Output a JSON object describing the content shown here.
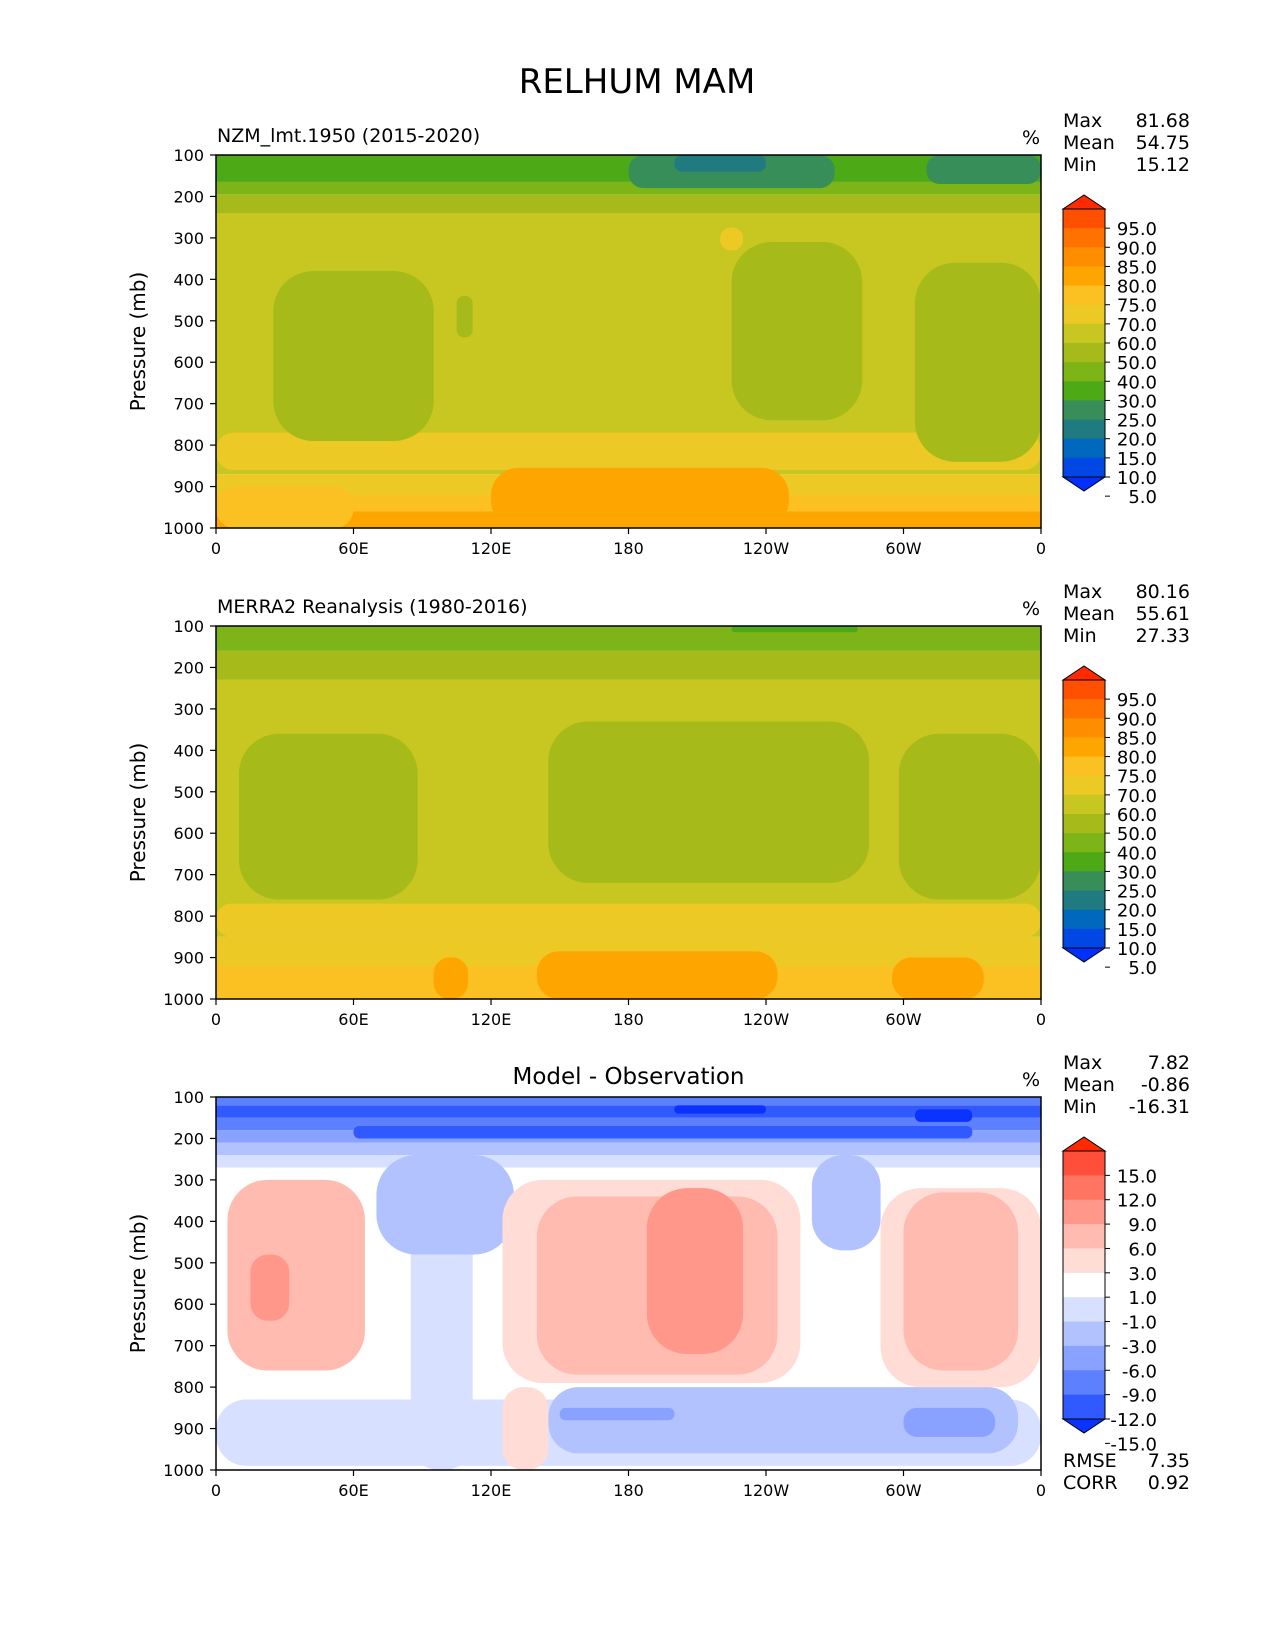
{
  "figure_title": "RELHUM MAM",
  "unit_symbol": "%",
  "chart_data": [
    {
      "type": "contour",
      "title": "NZM_lmt.1950 (2015-2020)",
      "ylabel": "Pressure (mb)",
      "y_ticks": [
        "100",
        "200",
        "300",
        "400",
        "500",
        "600",
        "700",
        "800",
        "900",
        "1000"
      ],
      "ylim": [
        100,
        1000
      ],
      "x_ticks": [
        "0",
        "60E",
        "120E",
        "180",
        "120W",
        "60W",
        "0"
      ],
      "stats": [
        {
          "label": "Max",
          "value": "81.68"
        },
        {
          "label": "Mean",
          "value": "54.75"
        },
        {
          "label": "Min",
          "value": "15.12"
        }
      ],
      "colorbar": {
        "labels": [
          "95.0",
          "90.0",
          "85.0",
          "80.0",
          "75.0",
          "70.0",
          "60.0",
          "50.0",
          "40.0",
          "30.0",
          "25.0",
          "20.0",
          "15.0",
          "10.0",
          "5.0"
        ],
        "colors": [
          "#ff2a00",
          "#ff4f00",
          "#ff7200",
          "#ff8d00",
          "#ffa500",
          "#fbc022",
          "#ecc925",
          "#c8c621",
          "#a6bb19",
          "#7db519",
          "#4ea916",
          "#378e59",
          "#1f7b80",
          "#0068bd",
          "#0047e3",
          "#0030ff"
        ]
      },
      "bands": [
        {
          "name": "band-60-70",
          "p0": 1000,
          "p1": 870,
          "color": "#ecc925"
        },
        {
          "name": "band-70-75",
          "p0": 1000,
          "p1": 920,
          "color": "#fbc022"
        },
        {
          "name": "band-75-80",
          "p0": 1000,
          "p1": 960,
          "color": "#ffa500"
        },
        {
          "name": "band-50-60",
          "p0": 870,
          "p1": 240,
          "color": "#c8c621"
        },
        {
          "name": "band-40-50",
          "p0": 240,
          "p1": 195,
          "color": "#a6bb19"
        },
        {
          "name": "band-30-40",
          "p0": 195,
          "p1": 165,
          "color": "#7db519"
        },
        {
          "name": "band-25-30",
          "p0": 165,
          "p1": 100,
          "color": "#4ea916"
        }
      ],
      "blobs": [
        {
          "name": "moist-band-800",
          "lon0": 0,
          "lon1": 360,
          "p0": 860,
          "p1": 770,
          "color": "#ecc925"
        },
        {
          "name": "moist-equator-west",
          "lon0": 120,
          "lon1": 250,
          "p0": 1000,
          "p1": 855,
          "color": "#ffa500"
        },
        {
          "name": "moist-east",
          "lon0": 0,
          "lon1": 60,
          "p0": 1000,
          "p1": 900,
          "color": "#fbc022"
        },
        {
          "name": "dry-midlat-1",
          "lon0": 25,
          "lon1": 95,
          "p0": 790,
          "p1": 380,
          "color": "#a6bb19"
        },
        {
          "name": "dry-small",
          "lon0": 105,
          "lon1": 112,
          "p0": 540,
          "p1": 440,
          "color": "#a6bb19"
        },
        {
          "name": "dry-midlat-2",
          "lon0": 225,
          "lon1": 282,
          "p0": 740,
          "p1": 310,
          "color": "#a6bb19"
        },
        {
          "name": "dry-midlat-3",
          "lon0": 305,
          "lon1": 360,
          "p0": 840,
          "p1": 360,
          "color": "#a6bb19"
        },
        {
          "name": "moist-patch-300",
          "lon0": 220,
          "lon1": 230,
          "p0": 330,
          "p1": 275,
          "color": "#ecc925"
        },
        {
          "name": "dry-strat-1",
          "lon0": 180,
          "lon1": 270,
          "p0": 180,
          "p1": 100,
          "color": "#378e59"
        },
        {
          "name": "dry-strat-2",
          "lon0": 200,
          "lon1": 240,
          "p0": 140,
          "p1": 100,
          "color": "#1f7b80"
        },
        {
          "name": "dry-strat-3",
          "lon0": 310,
          "lon1": 360,
          "p0": 170,
          "p1": 100,
          "color": "#378e59"
        }
      ]
    },
    {
      "type": "contour",
      "title": "MERRA2 Reanalysis (1980-2016)",
      "ylabel": "Pressure (mb)",
      "y_ticks": [
        "100",
        "200",
        "300",
        "400",
        "500",
        "600",
        "700",
        "800",
        "900",
        "1000"
      ],
      "ylim": [
        100,
        1000
      ],
      "x_ticks": [
        "0",
        "60E",
        "120E",
        "180",
        "120W",
        "60W",
        "0"
      ],
      "stats": [
        {
          "label": "Max",
          "value": "80.16"
        },
        {
          "label": "Mean",
          "value": "55.61"
        },
        {
          "label": "Min",
          "value": "27.33"
        }
      ],
      "colorbar": {
        "labels": [
          "95.0",
          "90.0",
          "85.0",
          "80.0",
          "75.0",
          "70.0",
          "60.0",
          "50.0",
          "40.0",
          "30.0",
          "25.0",
          "20.0",
          "15.0",
          "10.0",
          "5.0"
        ],
        "colors": [
          "#ff2a00",
          "#ff4f00",
          "#ff7200",
          "#ff8d00",
          "#ffa500",
          "#fbc022",
          "#ecc925",
          "#c8c621",
          "#a6bb19",
          "#7db519",
          "#4ea916",
          "#378e59",
          "#1f7b80",
          "#0068bd",
          "#0047e3",
          "#0030ff"
        ]
      },
      "bands": [
        {
          "name": "band-60-70",
          "p0": 1000,
          "p1": 850,
          "color": "#ecc925"
        },
        {
          "name": "band-70-75",
          "p0": 1000,
          "p1": 920,
          "color": "#fbc022"
        },
        {
          "name": "band-50-60",
          "p0": 850,
          "p1": 230,
          "color": "#c8c621"
        },
        {
          "name": "band-40-50",
          "p0": 230,
          "p1": 160,
          "color": "#a6bb19"
        },
        {
          "name": "band-30-40",
          "p0": 160,
          "p1": 100,
          "color": "#7db519"
        }
      ],
      "blobs": [
        {
          "name": "moist-band-780",
          "lon0": 0,
          "lon1": 360,
          "p0": 850,
          "p1": 770,
          "color": "#ecc925"
        },
        {
          "name": "moist-equator-1",
          "lon0": 140,
          "lon1": 245,
          "p0": 1000,
          "p1": 885,
          "color": "#ffa500"
        },
        {
          "name": "moist-equator-2",
          "lon0": 95,
          "lon1": 110,
          "p0": 1000,
          "p1": 900,
          "color": "#ffa500"
        },
        {
          "name": "moist-equator-3",
          "lon0": 295,
          "lon1": 335,
          "p0": 1000,
          "p1": 900,
          "color": "#ffa500"
        },
        {
          "name": "dry-midlat-1",
          "lon0": 10,
          "lon1": 88,
          "p0": 760,
          "p1": 360,
          "color": "#a6bb19"
        },
        {
          "name": "dry-midlat-2",
          "lon0": 145,
          "lon1": 285,
          "p0": 720,
          "p1": 330,
          "color": "#a6bb19"
        },
        {
          "name": "dry-midlat-3",
          "lon0": 298,
          "lon1": 360,
          "p0": 760,
          "p1": 360,
          "color": "#a6bb19"
        },
        {
          "name": "dry-strat-1",
          "lon0": 225,
          "lon1": 280,
          "p0": 115,
          "p1": 100,
          "color": "#4ea916"
        }
      ]
    },
    {
      "type": "contour",
      "title": "Model - Observation",
      "ylabel": "Pressure (mb)",
      "y_ticks": [
        "100",
        "200",
        "300",
        "400",
        "500",
        "600",
        "700",
        "800",
        "900",
        "1000"
      ],
      "ylim": [
        100,
        1000
      ],
      "x_ticks": [
        "0",
        "60E",
        "120E",
        "180",
        "120W",
        "60W",
        "0"
      ],
      "stats": [
        {
          "label": "Max",
          "value": "7.82"
        },
        {
          "label": "Mean",
          "value": "-0.86"
        },
        {
          "label": "Min",
          "value": "-16.31"
        }
      ],
      "metrics": [
        {
          "label": "RMSE",
          "value": "7.35"
        },
        {
          "label": "CORR",
          "value": "0.92"
        }
      ],
      "colorbar": {
        "labels": [
          "15.0",
          "12.0",
          "9.0",
          "6.0",
          "3.0",
          "1.0",
          "-1.0",
          "-3.0",
          "-6.0",
          "-9.0",
          "-12.0",
          "-15.0"
        ],
        "colors": [
          "#ff2a00",
          "#ff4f3a",
          "#ff7562",
          "#ff978a",
          "#ffbbb0",
          "#ffdcd6",
          "#ffffff",
          "#d8e0ff",
          "#b2c2ff",
          "#8aa2ff",
          "#5c80ff",
          "#3059ff",
          "#0a33ff"
        ]
      },
      "bands": [
        {
          "name": "band-neutral",
          "p0": 1000,
          "p1": 270,
          "color": "#ffffff"
        },
        {
          "name": "band-neg-1",
          "p0": 270,
          "p1": 240,
          "color": "#d8e0ff"
        },
        {
          "name": "band-neg-3",
          "p0": 240,
          "p1": 210,
          "color": "#b2c2ff"
        },
        {
          "name": "band-neg-6",
          "p0": 210,
          "p1": 180,
          "color": "#8aa2ff"
        },
        {
          "name": "band-neg-9",
          "p0": 180,
          "p1": 150,
          "color": "#5c80ff"
        },
        {
          "name": "band-neg-12",
          "p0": 150,
          "p1": 120,
          "color": "#3059ff"
        },
        {
          "name": "band-neg-15",
          "p0": 120,
          "p1": 100,
          "color": "#5c80ff"
        }
      ],
      "blobs": [
        {
          "name": "neg-lower-belt",
          "lon0": 0,
          "lon1": 360,
          "p0": 990,
          "p1": 830,
          "color": "#d8e0ff"
        },
        {
          "name": "neg-lower-belt-2",
          "lon0": 145,
          "lon1": 350,
          "p0": 960,
          "p1": 800,
          "color": "#b2c2ff"
        },
        {
          "name": "neg-trop-column",
          "lon0": 85,
          "lon1": 112,
          "p0": 1000,
          "p1": 260,
          "color": "#d8e0ff"
        },
        {
          "name": "neg-trop-upper",
          "lon0": 70,
          "lon1": 130,
          "p0": 480,
          "p1": 240,
          "color": "#b2c2ff"
        },
        {
          "name": "neg-column-2",
          "lon0": 260,
          "lon1": 290,
          "p0": 470,
          "p1": 240,
          "color": "#b2c2ff"
        },
        {
          "name": "pos-midlat-1",
          "lon0": 5,
          "lon1": 65,
          "p0": 760,
          "p1": 300,
          "color": "#ffbbb0"
        },
        {
          "name": "pos-midlat-1-core",
          "lon0": 15,
          "lon1": 32,
          "p0": 640,
          "p1": 480,
          "color": "#ff978a"
        },
        {
          "name": "pos-midlat-2",
          "lon0": 125,
          "lon1": 255,
          "p0": 790,
          "p1": 300,
          "color": "#ffdcd6"
        },
        {
          "name": "pos-midlat-2-b",
          "lon0": 140,
          "lon1": 245,
          "p0": 770,
          "p1": 340,
          "color": "#ffbbb0"
        },
        {
          "name": "pos-midlat-2-core",
          "lon0": 188,
          "lon1": 230,
          "p0": 720,
          "p1": 320,
          "color": "#ff978a"
        },
        {
          "name": "pos-midlat-3",
          "lon0": 290,
          "lon1": 360,
          "p0": 800,
          "p1": 320,
          "color": "#ffdcd6"
        },
        {
          "name": "pos-midlat-3-b",
          "lon0": 300,
          "lon1": 350,
          "p0": 760,
          "p1": 330,
          "color": "#ffbbb0"
        },
        {
          "name": "pos-small-1",
          "lon0": 125,
          "lon1": 145,
          "p0": 1000,
          "p1": 800,
          "color": "#ffdcd6"
        },
        {
          "name": "neg-core-1",
          "lon0": 150,
          "lon1": 200,
          "p0": 880,
          "p1": 850,
          "color": "#8aa2ff"
        },
        {
          "name": "neg-core-2",
          "lon0": 300,
          "lon1": 340,
          "p0": 920,
          "p1": 850,
          "color": "#8aa2ff"
        },
        {
          "name": "neg-strat-core",
          "lon0": 60,
          "lon1": 330,
          "p0": 200,
          "p1": 170,
          "color": "#3059ff"
        },
        {
          "name": "neg-strat-core-2",
          "lon0": 200,
          "lon1": 240,
          "p0": 140,
          "p1": 120,
          "color": "#0a33ff"
        },
        {
          "name": "neg-strat-core-3",
          "lon0": 305,
          "lon1": 330,
          "p0": 160,
          "p1": 130,
          "color": "#0a33ff"
        }
      ]
    }
  ]
}
